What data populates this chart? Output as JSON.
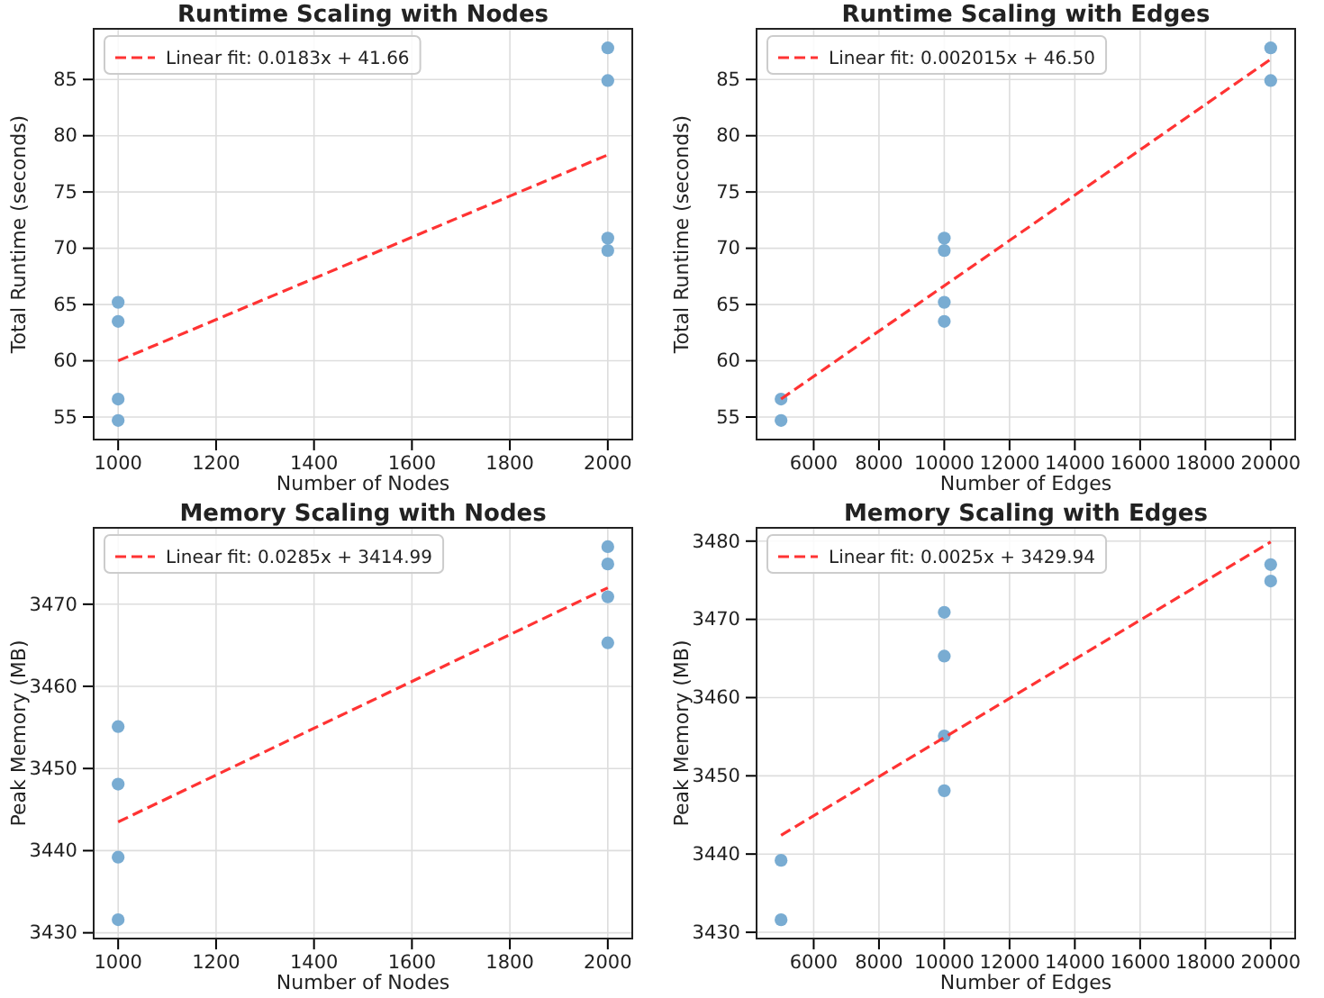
{
  "chart_data": [
    {
      "type": "scatter",
      "title": "Runtime Scaling with Nodes",
      "xlabel": "Number of Nodes",
      "ylabel": "Total Runtime (seconds)",
      "xlim": [
        950,
        2050
      ],
      "ylim": [
        53.0,
        89.5
      ],
      "xticks": [
        1000,
        1200,
        1400,
        1600,
        1800,
        2000
      ],
      "yticks": [
        55,
        60,
        65,
        70,
        75,
        80,
        85
      ],
      "grid": true,
      "legend": "top left",
      "series": [
        {
          "marker": "circle",
          "color": "#79acd2",
          "x": [
            1000,
            1000,
            1000,
            1000,
            2000,
            2000,
            2000,
            2000
          ],
          "values": [
            65.2,
            63.5,
            56.6,
            54.7,
            87.8,
            84.9,
            70.9,
            69.8
          ]
        },
        {
          "type": "line",
          "marker": "none",
          "name": "Linear fit: 0.0183x + 41.66",
          "color": "#ff3333",
          "line_style": "dashed",
          "x": [
            1000,
            2000
          ],
          "values": [
            60.0,
            78.3
          ]
        }
      ]
    },
    {
      "type": "scatter",
      "title": "Runtime Scaling with Edges",
      "xlabel": "Number of Edges",
      "ylabel": "Total Runtime (seconds)",
      "xlim": [
        4250,
        20750
      ],
      "ylim": [
        53.0,
        89.5
      ],
      "xticks": [
        6000,
        8000,
        10000,
        12000,
        14000,
        16000,
        18000,
        20000
      ],
      "yticks": [
        55,
        60,
        65,
        70,
        75,
        80,
        85
      ],
      "grid": true,
      "legend": "top left",
      "series": [
        {
          "marker": "circle",
          "color": "#79acd2",
          "x": [
            5000,
            5000,
            10000,
            10000,
            10000,
            10000,
            20000,
            20000
          ],
          "values": [
            56.6,
            54.7,
            70.9,
            69.8,
            65.2,
            63.5,
            87.8,
            84.9
          ]
        },
        {
          "type": "line",
          "marker": "none",
          "name": "Linear fit: 0.002015x + 46.50",
          "color": "#ff3333",
          "line_style": "dashed",
          "x": [
            5000,
            20000
          ],
          "values": [
            56.6,
            86.8
          ]
        }
      ]
    },
    {
      "type": "scatter",
      "title": "Memory Scaling with Nodes",
      "xlabel": "Number of Nodes",
      "ylabel": "Peak Memory (MB)",
      "xlim": [
        950,
        2050
      ],
      "ylim": [
        3429.3,
        3479.3
      ],
      "xticks": [
        1000,
        1200,
        1400,
        1600,
        1800,
        2000
      ],
      "yticks": [
        3430,
        3440,
        3450,
        3460,
        3470
      ],
      "grid": true,
      "legend": "top left",
      "series": [
        {
          "marker": "circle",
          "color": "#79acd2",
          "x": [
            1000,
            1000,
            1000,
            1000,
            2000,
            2000,
            2000,
            2000
          ],
          "values": [
            3455.1,
            3448.1,
            3439.2,
            3431.6,
            3477.0,
            3474.9,
            3470.9,
            3465.3
          ]
        },
        {
          "type": "line",
          "marker": "none",
          "name": "Linear fit: 0.0285x + 3414.99",
          "color": "#ff3333",
          "line_style": "dashed",
          "x": [
            1000,
            2000
          ],
          "values": [
            3443.5,
            3472.0
          ]
        }
      ]
    },
    {
      "type": "scatter",
      "title": "Memory Scaling with Edges",
      "xlabel": "Number of Edges",
      "ylabel": "Peak Memory (MB)",
      "xlim": [
        4250,
        20750
      ],
      "ylim": [
        3429.2,
        3481.7
      ],
      "xticks": [
        6000,
        8000,
        10000,
        12000,
        14000,
        16000,
        18000,
        20000
      ],
      "yticks": [
        3430,
        3440,
        3450,
        3460,
        3470,
        3480
      ],
      "grid": true,
      "legend": "top left",
      "series": [
        {
          "marker": "circle",
          "color": "#79acd2",
          "x": [
            5000,
            5000,
            10000,
            10000,
            10000,
            10000,
            20000,
            20000
          ],
          "values": [
            3439.2,
            3431.6,
            3470.9,
            3465.3,
            3455.1,
            3448.1,
            3477.0,
            3474.9
          ]
        },
        {
          "type": "line",
          "marker": "none",
          "name": "Linear fit: 0.0025x + 3429.94",
          "color": "#ff3333",
          "line_style": "dashed",
          "x": [
            5000,
            20000
          ],
          "values": [
            3442.4,
            3479.9
          ]
        }
      ]
    }
  ]
}
